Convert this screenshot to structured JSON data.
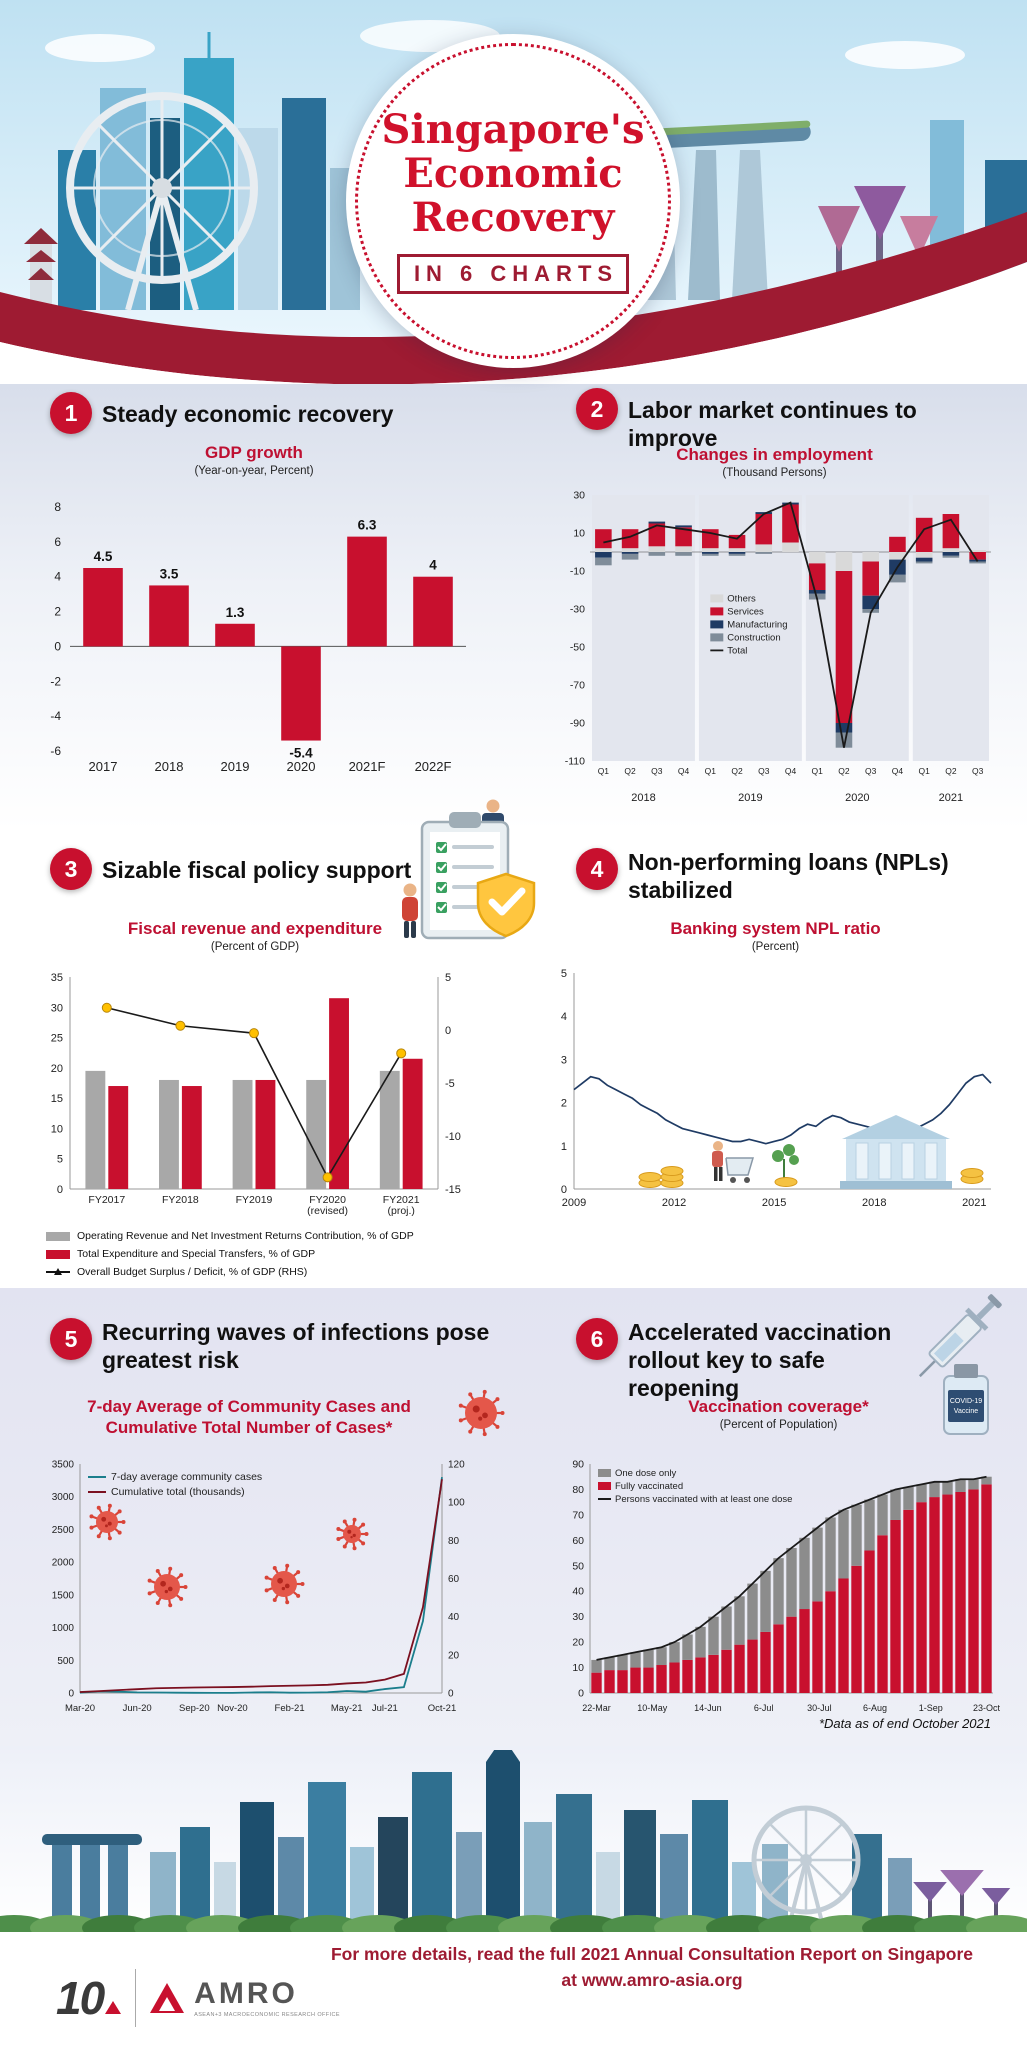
{
  "header": {
    "title_line1": "Singapore's",
    "title_line2": "Economic",
    "title_line3": "Recovery",
    "subtitle": "IN 6 CHARTS"
  },
  "sections": {
    "s1": {
      "number": "1",
      "title": "Steady economic recovery"
    },
    "s2": {
      "number": "2",
      "title": "Labor market continues to improve"
    },
    "s3": {
      "number": "3",
      "title": "Sizable fiscal policy support"
    },
    "s4": {
      "number": "4",
      "title": "Non-performing loans (NPLs) stabilized"
    },
    "s5": {
      "number": "5",
      "title": "Recurring waves of infections pose greatest risk"
    },
    "s6": {
      "number": "6",
      "title": "Accelerated vaccination rollout key to safe reopening"
    }
  },
  "notes": {
    "vaccination_footnote": "*Data as of end October 2021"
  },
  "decorations": {
    "vial_label_line1": "COVID-19",
    "vial_label_line2": "Vaccine"
  },
  "footer": {
    "message_line1": "For more details, read the full 2021 Annual Consultation Report on Singapore",
    "message_line2": "at www.amro-asia.org",
    "anniversary_logo": "10",
    "logo_text": "AMRO",
    "logo_tagline": "ASEAN+3 MACROECONOMIC RESEARCH OFFICE"
  },
  "colors": {
    "accent_red": "#C8102E",
    "dark_red": "#9E1B32",
    "navy": "#1F3B64",
    "teal": "#1B7E8C",
    "gold": "#FFC000",
    "gray_bar": "#A8A8A8"
  },
  "chart_data": [
    {
      "id": "gdp_growth",
      "type": "bar",
      "title": "GDP growth",
      "subtitle": "(Year-on-year, Percent)",
      "categories": [
        "2017",
        "2018",
        "2019",
        "2020",
        "2021F",
        "2022F"
      ],
      "values": [
        4.5,
        3.5,
        1.3,
        -5.4,
        6.3,
        4
      ],
      "ylim": [
        -6,
        8
      ],
      "ytick_step": 2,
      "bar_color": "#C8102E"
    },
    {
      "id": "employment_changes",
      "type": "stacked_bar_line",
      "title": "Changes in employment",
      "subtitle": "(Thousand Persons)",
      "categories": [
        "Q1",
        "Q2",
        "Q3",
        "Q4",
        "Q1",
        "Q2",
        "Q3",
        "Q4",
        "Q1",
        "Q2",
        "Q3",
        "Q4",
        "Q1",
        "Q2",
        "Q3"
      ],
      "year_groups": [
        {
          "label": "2018",
          "count": 4
        },
        {
          "label": "2019",
          "count": 4
        },
        {
          "label": "2020",
          "count": 4
        },
        {
          "label": "2021",
          "count": 3
        }
      ],
      "series": [
        {
          "name": "Others",
          "color": "#D9D9D9",
          "values": [
            2,
            2,
            3,
            3,
            2,
            2,
            4,
            5,
            -6,
            -10,
            -5,
            -4,
            -3,
            2,
            1
          ]
        },
        {
          "name": "Services",
          "color": "#C8102E",
          "values": [
            10,
            10,
            12,
            10,
            10,
            7,
            16,
            20,
            -14,
            -80,
            -18,
            8,
            18,
            18,
            -4
          ]
        },
        {
          "name": "Manufacturing",
          "color": "#1F3B64",
          "values": [
            -3,
            -1,
            1,
            1,
            -1,
            -1,
            1,
            1,
            -2,
            -5,
            -7,
            -8,
            -2,
            -2,
            -1
          ]
        },
        {
          "name": "Construction",
          "color": "#7F8C99",
          "values": [
            -4,
            -3,
            -2,
            -2,
            -1,
            -1,
            -1,
            0,
            -3,
            -8,
            -2,
            -4,
            -1,
            -1,
            -1
          ]
        }
      ],
      "line": {
        "name": "Total",
        "color": "#1A1A1A",
        "values": [
          5,
          8,
          14,
          12,
          10,
          7,
          20,
          26,
          -25,
          -103,
          -32,
          -8,
          12,
          17,
          -5
        ]
      },
      "ylim": [
        -110,
        30
      ],
      "yticks": [
        30,
        10,
        -10,
        -30,
        -50,
        -70,
        -90,
        -110
      ]
    },
    {
      "id": "fiscal_revenue_expenditure",
      "type": "grouped_bar_line",
      "title": "Fiscal revenue and expenditure",
      "subtitle": "(Percent of GDP)",
      "categories": [
        [
          "FY2017"
        ],
        [
          "FY2018"
        ],
        [
          "FY2019"
        ],
        [
          "FY2020",
          "(revised)"
        ],
        [
          "FY2021",
          "(proj.)"
        ]
      ],
      "series": [
        {
          "name": "Operating Revenue and Net Investment Returns Contribution, % of GDP",
          "color": "#A8A8A8",
          "values": [
            19.5,
            18,
            18,
            18,
            19.5
          ]
        },
        {
          "name": "Total Expenditure and Special Transfers, % of GDP",
          "color": "#C8102E",
          "values": [
            17,
            17,
            18,
            31.5,
            21.5
          ]
        }
      ],
      "line": {
        "name": "Overall Budget Surplus / Deficit, % of GDP (RHS)",
        "color": "#1A1A1A",
        "marker_color": "#FFC000",
        "values": [
          2.1,
          0.4,
          -0.3,
          -13.9,
          -2.2
        ]
      },
      "ylim_left": [
        0,
        35
      ],
      "yticks_left": [
        0,
        5,
        10,
        15,
        20,
        25,
        30,
        35
      ],
      "ylim_right": [
        -15,
        5
      ],
      "yticks_right": [
        5,
        0,
        -5,
        -10,
        -15
      ]
    },
    {
      "id": "npl_ratio",
      "type": "line",
      "title": "Banking system NPL ratio",
      "subtitle": "(Percent)",
      "x_tick_labels": [
        "2009",
        "2012",
        "2015",
        "2018",
        "2021"
      ],
      "x_tick_positions": [
        0,
        0.24,
        0.48,
        0.72,
        0.96
      ],
      "values": [
        2.3,
        2.45,
        2.6,
        2.55,
        2.4,
        2.3,
        2.2,
        2.1,
        1.95,
        1.85,
        1.75,
        1.6,
        1.5,
        1.4,
        1.35,
        1.3,
        1.25,
        1.2,
        1.15,
        1.1,
        1.1,
        1.15,
        1.1,
        1.05,
        1.1,
        1.15,
        1.25,
        1.4,
        1.5,
        1.45,
        1.6,
        1.7,
        1.65,
        1.55,
        1.5,
        1.45,
        1.4,
        1.35,
        1.3,
        1.3,
        1.35,
        1.4,
        1.5,
        1.6,
        1.75,
        1.95,
        2.2,
        2.45,
        2.6,
        2.65,
        2.45
      ],
      "ylim": [
        0,
        5
      ],
      "yticks": [
        0,
        1,
        2,
        3,
        4,
        5
      ],
      "line_color": "#1F3B64"
    },
    {
      "id": "covid_cases",
      "type": "dual_line",
      "title_line1": "7-day Average of Community Cases and",
      "title_line2": "Cumulative Total Number of Cases*",
      "x_tick_labels": [
        "Mar-20",
        "Jun-20",
        "Sep-20",
        "Nov-20",
        "Feb-21",
        "May-21",
        "Jul-21",
        "Oct-21"
      ],
      "x_tick_idx": [
        0,
        3,
        6,
        8,
        11,
        14,
        16,
        19
      ],
      "series": [
        {
          "name": "7-day average community cases",
          "color": "#1B7E8C",
          "axis": "left",
          "values": [
            5,
            25,
            20,
            10,
            8,
            5,
            3,
            2,
            2,
            8,
            12,
            5,
            6,
            12,
            30,
            20,
            60,
            90,
            1100,
            3300
          ]
        },
        {
          "name": "Cumulative total (thousands)",
          "color": "#7B1020",
          "axis": "right",
          "values": [
            0.5,
            1,
            1.5,
            2,
            2.5,
            2.7,
            2.9,
            3,
            3.1,
            3.3,
            3.6,
            3.8,
            4,
            4.3,
            5,
            5.5,
            7,
            10,
            45,
            112
          ]
        }
      ],
      "ylim_left": [
        0,
        3500
      ],
      "yticks_left": [
        0,
        500,
        1000,
        1500,
        2000,
        2500,
        3000,
        3500
      ],
      "ylim_right": [
        0,
        120
      ],
      "yticks_right": [
        0,
        20,
        40,
        60,
        80,
        100,
        120
      ]
    },
    {
      "id": "vaccination_coverage",
      "type": "stacked_bar_line",
      "title": "Vaccination coverage*",
      "subtitle": "(Percent of Population)",
      "x_tick_labels": [
        "22-Mar",
        "10-May",
        "14-Jun",
        "6-Jul",
        "30-Jul",
        "6-Aug",
        "1-Sep",
        "23-Oct"
      ],
      "series": [
        {
          "name": "One dose only",
          "color": "#8C8C8C",
          "values": [
            5,
            5,
            6,
            6,
            7,
            7,
            8,
            10,
            12,
            15,
            17,
            19,
            22,
            24,
            26,
            27,
            28,
            29,
            29,
            27,
            24,
            20,
            16,
            12,
            9,
            7,
            6,
            5,
            5,
            4,
            3
          ]
        },
        {
          "name": "Fully vaccinated",
          "color": "#C8102E",
          "values": [
            8,
            9,
            9,
            10,
            10,
            11,
            12,
            13,
            14,
            15,
            17,
            19,
            21,
            24,
            27,
            30,
            33,
            36,
            40,
            45,
            50,
            56,
            62,
            68,
            72,
            75,
            77,
            78,
            79,
            80,
            82
          ]
        }
      ],
      "line": {
        "name": "Persons vaccinated with at least one dose",
        "color": "#1A1A1A",
        "values": [
          13,
          14,
          15,
          16,
          17,
          18,
          20,
          23,
          26,
          30,
          34,
          38,
          43,
          48,
          53,
          57,
          61,
          65,
          69,
          72,
          74,
          76,
          78,
          80,
          81,
          82,
          83,
          83,
          84,
          84,
          85
        ]
      },
      "ylim": [
        0,
        90
      ],
      "yticks": [
        0,
        10,
        20,
        30,
        40,
        50,
        60,
        70,
        80,
        90
      ]
    }
  ]
}
